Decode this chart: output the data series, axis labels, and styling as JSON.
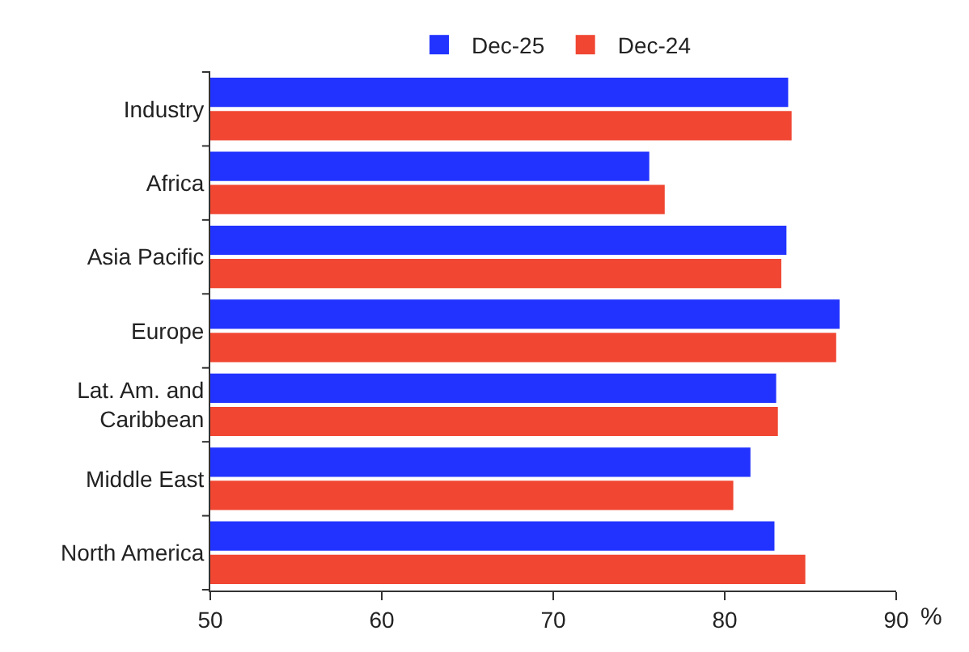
{
  "chart_data": {
    "type": "bar",
    "orientation": "horizontal",
    "xlabel": "%",
    "categories": [
      "Industry",
      "Africa",
      "Asia Pacific",
      "Europe",
      "Lat. Am. and\nCaribbean",
      "Middle East",
      "North America"
    ],
    "series": [
      {
        "name": "Dec-25",
        "color": "#2233ff",
        "values": [
          83.7,
          75.6,
          83.6,
          86.7,
          83.0,
          81.5,
          82.9
        ]
      },
      {
        "name": "Dec-24",
        "color": "#f04632",
        "values": [
          83.9,
          76.5,
          83.3,
          86.5,
          83.1,
          80.5,
          84.7
        ]
      }
    ],
    "xlim": [
      50,
      90
    ],
    "xticks": [
      50,
      60,
      70,
      80,
      90
    ],
    "legend": "top"
  }
}
